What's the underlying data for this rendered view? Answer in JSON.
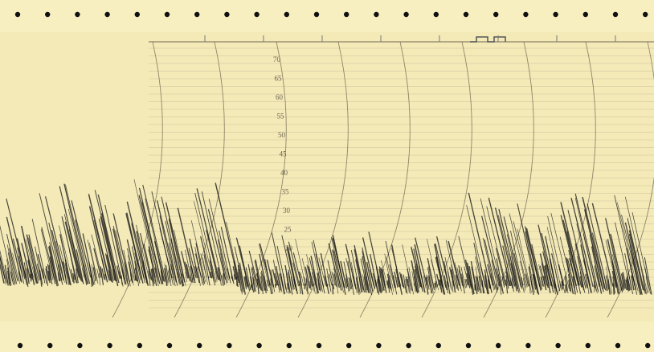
{
  "scale": {
    "labels": [
      "70",
      "65",
      "60",
      "55",
      "50",
      "45",
      "40",
      "35",
      "30",
      "25",
      "20"
    ]
  }
}
